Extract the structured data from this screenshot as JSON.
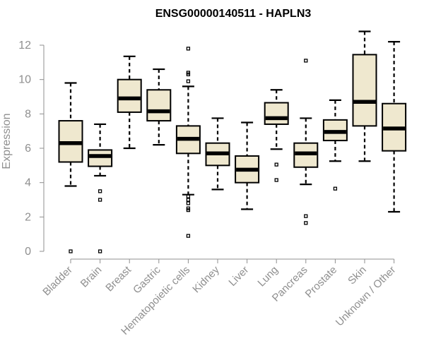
{
  "chart_data": {
    "type": "boxplot",
    "title": "ENSG00000140511 - HAPLN3",
    "xlabel": "",
    "ylabel": "Expression",
    "ylim": [
      0,
      12.5
    ],
    "yticks": [
      0,
      2,
      4,
      6,
      8,
      10,
      12
    ],
    "grid": false,
    "box_fill": "#efe8cf",
    "categories": [
      "Bladder",
      "Brain",
      "Breast",
      "Gastric",
      "Hematopoietic cells",
      "Kidney",
      "Liver",
      "Lung",
      "Pancreas",
      "Prostate",
      "Skin",
      "Unknown / Other"
    ],
    "series": [
      {
        "values": [
          {
            "min": 3.8,
            "q1": 5.2,
            "median": 6.3,
            "q3": 7.6,
            "max": 9.8,
            "outliers": [
              0.0
            ]
          },
          {
            "min": 4.4,
            "q1": 4.95,
            "median": 5.55,
            "q3": 5.9,
            "max": 7.4,
            "outliers": [
              3.5,
              3.0,
              0.0
            ]
          },
          {
            "min": 6.0,
            "q1": 8.1,
            "median": 8.9,
            "q3": 10.0,
            "max": 11.35,
            "outliers": []
          },
          {
            "min": 6.2,
            "q1": 7.6,
            "median": 8.15,
            "q3": 9.4,
            "max": 10.6,
            "outliers": []
          },
          {
            "min": 3.3,
            "q1": 5.7,
            "median": 6.55,
            "q3": 7.3,
            "max": 9.6,
            "outliers": [
              11.8,
              10.4,
              10.3,
              9.9,
              3.2,
              3.0,
              2.8,
              2.5,
              2.4,
              0.9
            ]
          },
          {
            "min": 3.6,
            "q1": 5.0,
            "median": 5.7,
            "q3": 6.3,
            "max": 7.75,
            "outliers": []
          },
          {
            "min": 2.45,
            "q1": 4.0,
            "median": 4.75,
            "q3": 5.55,
            "max": 7.5,
            "outliers": []
          },
          {
            "min": 5.95,
            "q1": 7.4,
            "median": 7.75,
            "q3": 8.65,
            "max": 9.4,
            "outliers": [
              5.05,
              4.15
            ]
          },
          {
            "min": 3.9,
            "q1": 4.9,
            "median": 5.7,
            "q3": 6.3,
            "max": 7.75,
            "outliers": [
              11.1,
              2.05,
              1.65
            ]
          },
          {
            "min": 5.25,
            "q1": 6.45,
            "median": 6.95,
            "q3": 7.65,
            "max": 8.8,
            "outliers": [
              3.65
            ]
          },
          {
            "min": 5.25,
            "q1": 7.3,
            "median": 8.7,
            "q3": 11.45,
            "max": 12.8,
            "outliers": []
          },
          {
            "min": 2.3,
            "q1": 5.85,
            "median": 7.15,
            "q3": 8.6,
            "max": 12.2,
            "outliers": []
          }
        ]
      }
    ]
  }
}
